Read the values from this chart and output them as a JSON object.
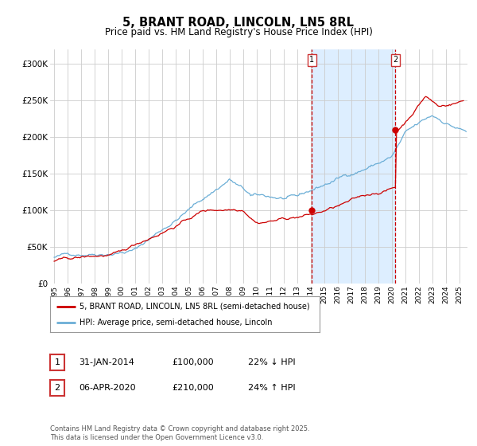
{
  "title": "5, BRANT ROAD, LINCOLN, LN5 8RL",
  "subtitle": "Price paid vs. HM Land Registry's House Price Index (HPI)",
  "title_fontsize": 10.5,
  "subtitle_fontsize": 8.5,
  "ylim": [
    0,
    320000
  ],
  "yticks": [
    0,
    50000,
    100000,
    150000,
    200000,
    250000,
    300000
  ],
  "ytick_labels": [
    "£0",
    "£50K",
    "£100K",
    "£150K",
    "£200K",
    "£250K",
    "£300K"
  ],
  "xlim_start": 1994.7,
  "xlim_end": 2025.6,
  "xticks": [
    1995,
    1996,
    1997,
    1998,
    1999,
    2000,
    2001,
    2002,
    2003,
    2004,
    2005,
    2006,
    2007,
    2008,
    2009,
    2010,
    2011,
    2012,
    2013,
    2014,
    2015,
    2016,
    2017,
    2018,
    2019,
    2020,
    2021,
    2022,
    2023,
    2024,
    2025
  ],
  "hpi_color": "#6baed6",
  "sale_color": "#cc0000",
  "marker1_date": 2014.08,
  "marker2_date": 2020.27,
  "marker1_price": 100000,
  "marker2_price": 210000,
  "annotation1": "31-JAN-2014",
  "annotation1_price": "£100,000",
  "annotation1_hpi": "22% ↓ HPI",
  "annotation2": "06-APR-2020",
  "annotation2_price": "£210,000",
  "annotation2_hpi": "24% ↑ HPI",
  "legend_label1": "5, BRANT ROAD, LINCOLN, LN5 8RL (semi-detached house)",
  "legend_label2": "HPI: Average price, semi-detached house, Lincoln",
  "footer": "Contains HM Land Registry data © Crown copyright and database right 2025.\nThis data is licensed under the Open Government Licence v3.0.",
  "background_color": "#ffffff",
  "grid_color": "#cccccc",
  "shaded_region_color": "#ddeeff"
}
